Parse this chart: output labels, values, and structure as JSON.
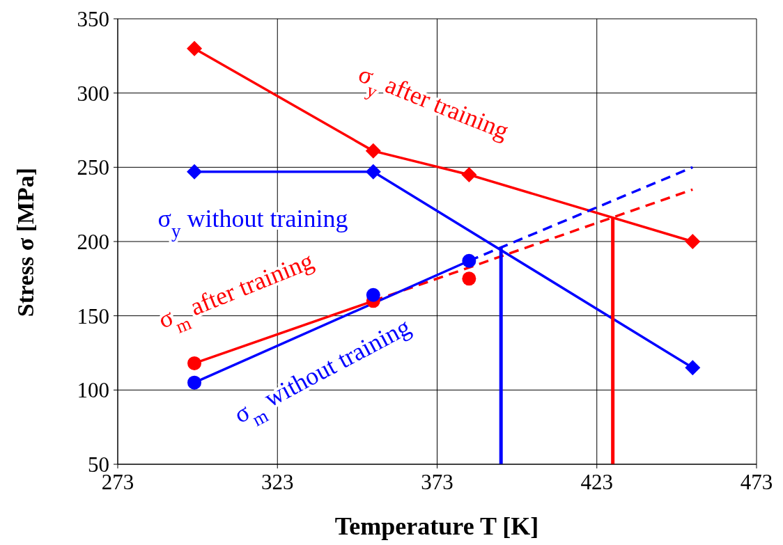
{
  "chart_data": {
    "type": "line",
    "xlabel": "Temperature T [K]",
    "ylabel": "Stress σ [MPa]",
    "xlim": [
      273,
      473
    ],
    "xticks": [
      273,
      323,
      373,
      423,
      473
    ],
    "ylim": [
      50,
      350
    ],
    "yticks": [
      50,
      100,
      150,
      200,
      250,
      300,
      350
    ],
    "grid": true,
    "series": [
      {
        "name": "σ$_{y}$ after training",
        "color": "#ff0000",
        "marker": "diamond",
        "x": [
          297,
          353,
          383,
          453
        ],
        "values": [
          330,
          261,
          245,
          200
        ]
      },
      {
        "name": "σ$_{y}$ without training",
        "color": "#0000ff",
        "marker": "diamond",
        "x": [
          297,
          353,
          453
        ],
        "values": [
          247,
          247,
          115
        ]
      },
      {
        "name": "σ$_{m}$ after training",
        "type": "scatter",
        "color": "#ff0000",
        "marker": "circle",
        "x": [
          297,
          353,
          383
        ],
        "values": [
          118,
          160,
          175
        ]
      },
      {
        "name": "σ$_{m}$ without training",
        "type": "scatter",
        "color": "#0000ff",
        "marker": "circle",
        "x": [
          297,
          353,
          383
        ],
        "values": [
          105,
          164,
          187
        ]
      },
      {
        "type": "line",
        "color": "#ff0000",
        "marker": "none",
        "x": [
          297,
          353
        ],
        "values": [
          118,
          160
        ]
      },
      {
        "type": "line",
        "color": "#ff0000",
        "marker": "none",
        "line_style": "dashed",
        "x": [
          353,
          453
        ],
        "values": [
          160,
          235
        ]
      },
      {
        "type": "line",
        "color": "#0000ff",
        "marker": "none",
        "x": [
          297,
          383
        ],
        "values": [
          105,
          187
        ]
      },
      {
        "type": "line",
        "color": "#0000ff",
        "marker": "none",
        "line_style": "dashed",
        "x": [
          383,
          453
        ],
        "values": [
          187,
          250
        ]
      },
      {
        "type": "line",
        "color": "#0000ff",
        "marker": "none",
        "x": [
          393,
          393
        ],
        "values": [
          50,
          196
        ]
      },
      {
        "type": "line",
        "color": "#ff0000",
        "marker": "none",
        "x": [
          428,
          428
        ],
        "values": [
          50,
          216
        ]
      }
    ]
  }
}
